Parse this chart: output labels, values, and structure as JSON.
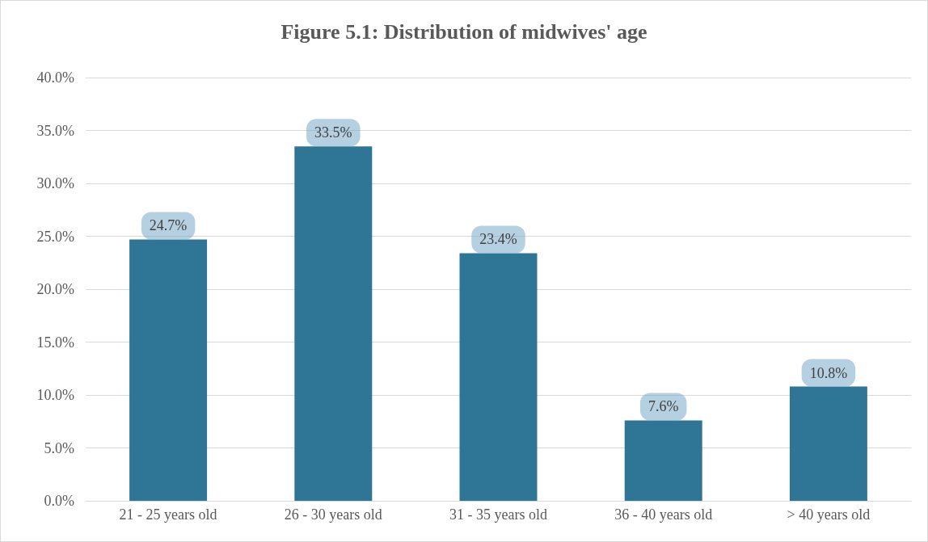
{
  "chart_data": {
    "type": "bar",
    "title": "Figure 5.1: Distribution of midwives' age",
    "categories": [
      "21 - 25 years old",
      "26 - 30 years old",
      "31 - 35 years old",
      "36 - 40 years old",
      "> 40 years old"
    ],
    "values": [
      24.7,
      33.5,
      23.4,
      7.6,
      10.8
    ],
    "value_labels": [
      "24.7%",
      "33.5%",
      "23.4%",
      "7.6%",
      "10.8%"
    ],
    "color": "#2e7596",
    "ylim": [
      0,
      40
    ],
    "yticks": [
      {
        "value": 0,
        "label": "0.0%"
      },
      {
        "value": 5,
        "label": "5.0%"
      },
      {
        "value": 10,
        "label": "10.0%"
      },
      {
        "value": 15,
        "label": "15.0%"
      },
      {
        "value": 20,
        "label": "20.0%"
      },
      {
        "value": 25,
        "label": "25.0%"
      },
      {
        "value": 30,
        "label": "30.0%"
      },
      {
        "value": 35,
        "label": "35.0%"
      },
      {
        "value": 40,
        "label": "40.0%"
      }
    ],
    "grid": "y"
  }
}
